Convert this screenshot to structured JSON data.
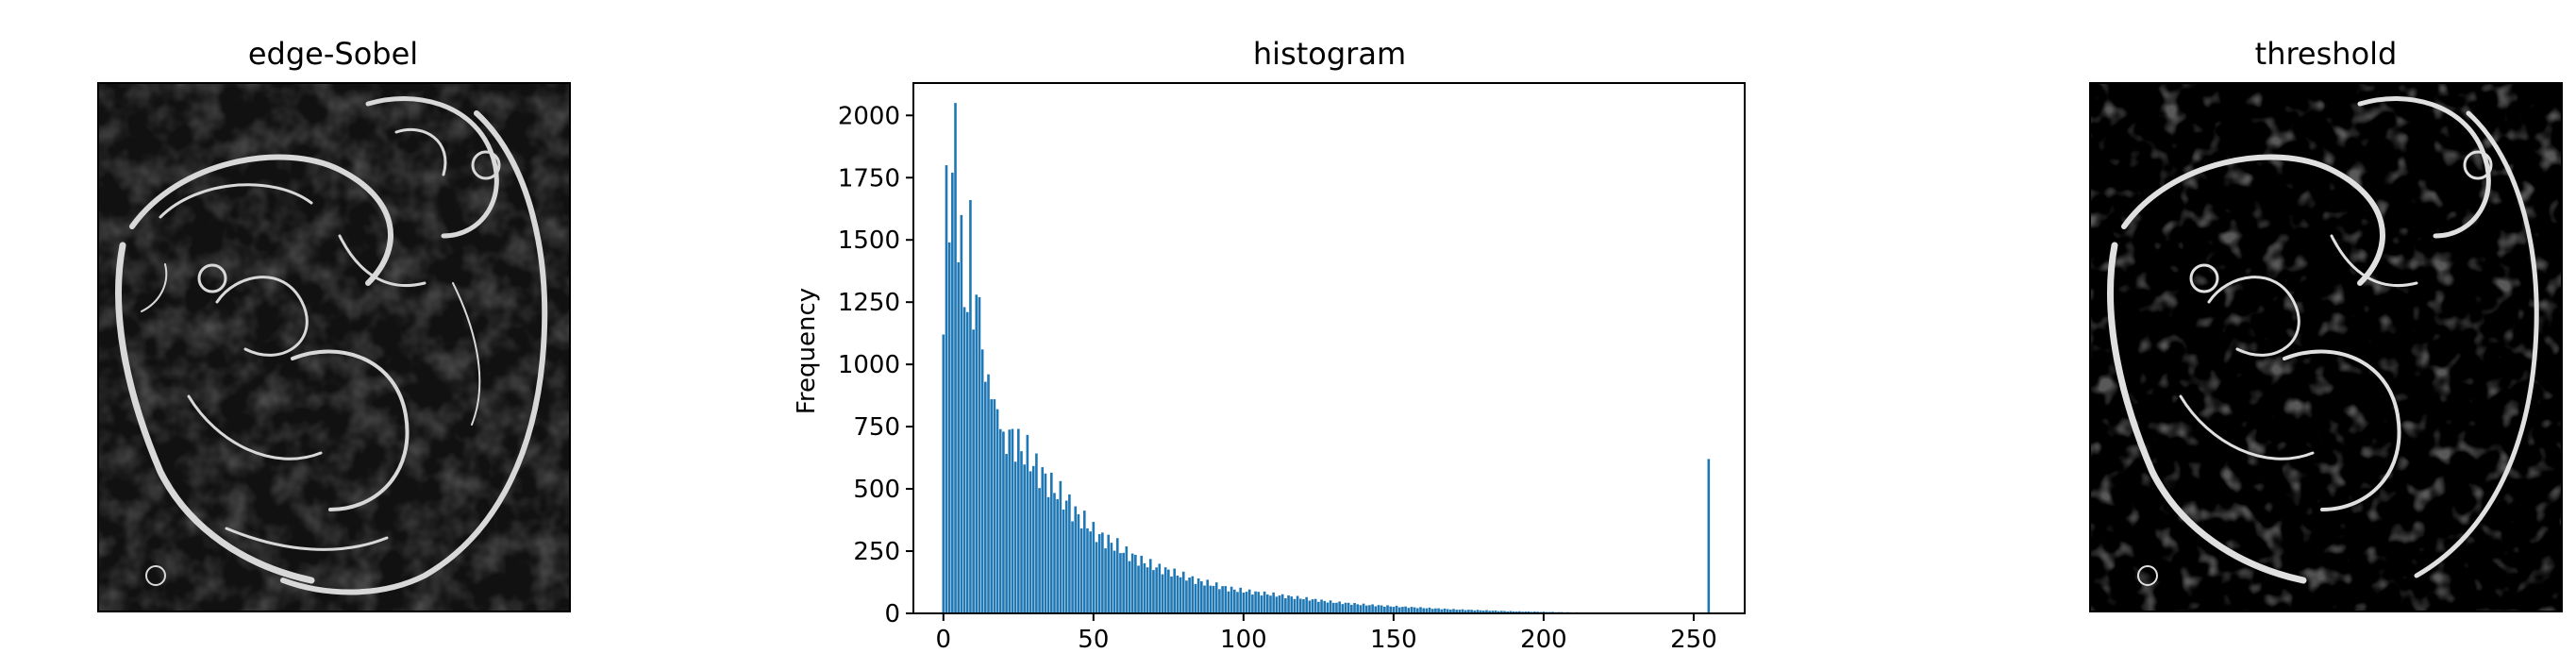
{
  "chart_data": [
    {
      "type": "image",
      "title": "edge-Sobel"
    },
    {
      "type": "bar",
      "title": "histogram",
      "xlabel": "",
      "ylabel": "Frequency",
      "xlim": [
        -10,
        267
      ],
      "ylim": [
        0,
        2130
      ],
      "xticks": [
        0,
        50,
        100,
        150,
        200,
        250
      ],
      "yticks": [
        0,
        250,
        500,
        750,
        1000,
        1250,
        1500,
        1750,
        2000
      ],
      "bar_color": "#1f77b4",
      "bins": "0-255, width 1",
      "anchors": [
        [
          0,
          1120
        ],
        [
          1,
          1800
        ],
        [
          2,
          1490
        ],
        [
          3,
          1770
        ],
        [
          4,
          2050
        ],
        [
          5,
          1410
        ],
        [
          6,
          1600
        ],
        [
          7,
          1230
        ],
        [
          8,
          1210
        ],
        [
          9,
          1660
        ],
        [
          10,
          1140
        ],
        [
          11,
          1280
        ],
        [
          12,
          1270
        ],
        [
          13,
          1060
        ],
        [
          14,
          930
        ],
        [
          15,
          960
        ],
        [
          16,
          860
        ],
        [
          17,
          860
        ],
        [
          18,
          820
        ],
        [
          19,
          740
        ],
        [
          20,
          730
        ],
        [
          22,
          710
        ],
        [
          24,
          690
        ],
        [
          26,
          660
        ],
        [
          28,
          640
        ],
        [
          30,
          600
        ],
        [
          32,
          570
        ],
        [
          34,
          540
        ],
        [
          36,
          510
        ],
        [
          38,
          490
        ],
        [
          40,
          460
        ],
        [
          42,
          440
        ],
        [
          44,
          400
        ],
        [
          46,
          380
        ],
        [
          48,
          360
        ],
        [
          50,
          330
        ],
        [
          52,
          310
        ],
        [
          55,
          290
        ],
        [
          58,
          270
        ],
        [
          60,
          250
        ],
        [
          63,
          230
        ],
        [
          66,
          210
        ],
        [
          70,
          190
        ],
        [
          75,
          170
        ],
        [
          80,
          150
        ],
        [
          85,
          130
        ],
        [
          90,
          115
        ],
        [
          95,
          100
        ],
        [
          100,
          90
        ],
        [
          110,
          75
        ],
        [
          120,
          60
        ],
        [
          130,
          45
        ],
        [
          140,
          35
        ],
        [
          150,
          28
        ],
        [
          160,
          22
        ],
        [
          170,
          16
        ],
        [
          180,
          12
        ],
        [
          190,
          8
        ],
        [
          200,
          6
        ],
        [
          210,
          4
        ],
        [
          220,
          3
        ],
        [
          230,
          2
        ],
        [
          240,
          1
        ],
        [
          254,
          1
        ],
        [
          255,
          620
        ]
      ]
    },
    {
      "type": "image",
      "title": "threshold"
    }
  ]
}
